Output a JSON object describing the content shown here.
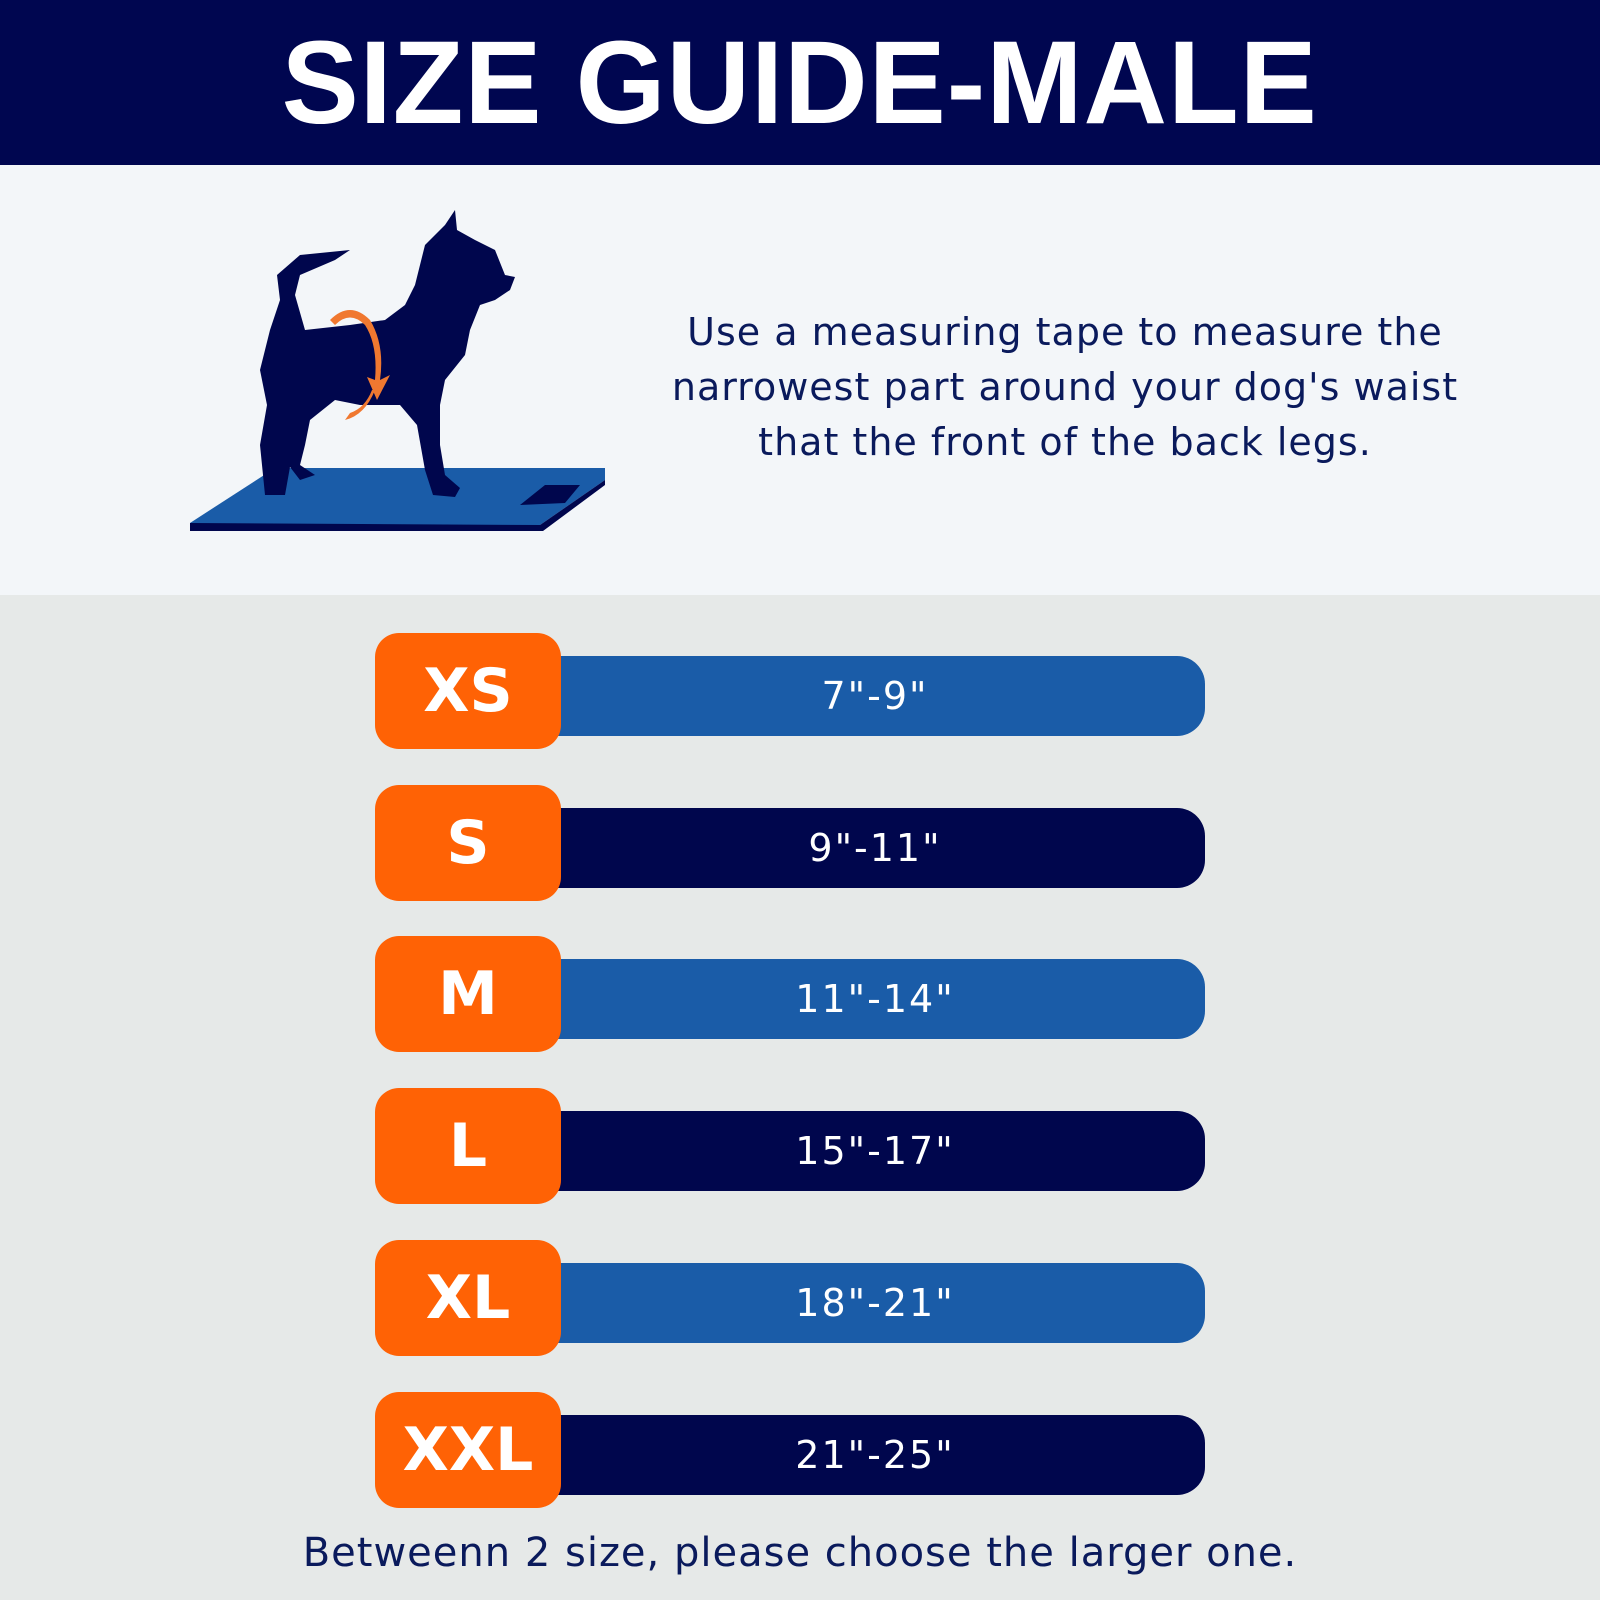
{
  "header": {
    "title": "SIZE GUIDE-MALE"
  },
  "intro": {
    "instruction": "Use a measuring tape to measure the narrowest part around your dog's waist that the front of the back legs.",
    "illustration": "dog-measuring-waist-icon"
  },
  "sizes": [
    {
      "size": "XS",
      "range": "7\"-9\"",
      "bar_color": "#1a5ca8"
    },
    {
      "size": "S",
      "range": "9\"-11\"",
      "bar_color": "#00064d"
    },
    {
      "size": "M",
      "range": "11\"-14\"",
      "bar_color": "#1a5ca8"
    },
    {
      "size": "L",
      "range": "15\"-17\"",
      "bar_color": "#00064d"
    },
    {
      "size": "XL",
      "range": "18\"-21\"",
      "bar_color": "#1a5ca8"
    },
    {
      "size": "XXL",
      "range": "21\"-25\"",
      "bar_color": "#00064d"
    }
  ],
  "footer": {
    "note": "Betweenn 2 size, please choose the larger one."
  },
  "colors": {
    "navy": "#000650",
    "blue": "#1a5ca8",
    "orange": "#ff6205"
  }
}
